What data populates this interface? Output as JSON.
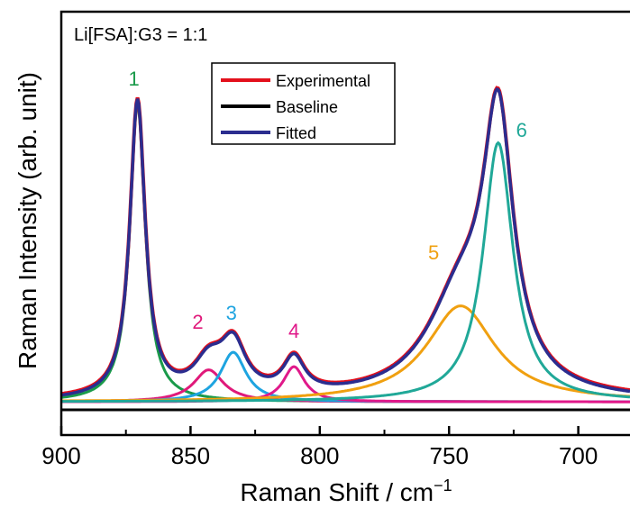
{
  "chart_data": {
    "type": "line",
    "annotation": "Li[FSA]:G3 = 1:1",
    "xlabel": "Raman Shift / cm",
    "xlabel_sup": "−1",
    "ylabel": "Raman Intensity (arb. unit)",
    "xlim": [
      900,
      680
    ],
    "ylim": [
      0,
      1.0
    ],
    "x_reversed": true,
    "x_ticks": [
      900,
      850,
      800,
      750,
      700
    ],
    "y_ticks_shown": false,
    "legend": {
      "placement": "top-center",
      "entries": [
        {
          "label": "Experimental",
          "color": "#e3101c"
        },
        {
          "label": "Baseline",
          "color": "#000000"
        },
        {
          "label": "Fitted",
          "color": "#2b2d8f"
        }
      ]
    },
    "peaks": [
      {
        "label": "1",
        "center": 870.5,
        "height": 0.93,
        "width": 3.6,
        "color": "#1a9a4a"
      },
      {
        "label": "2",
        "center": 843,
        "height": 0.1,
        "width": 7.0,
        "color": "#e0197a"
      },
      {
        "label": "3",
        "center": 833.5,
        "height": 0.155,
        "width": 6.0,
        "color": "#1ea4e0"
      },
      {
        "label": "4",
        "center": 810,
        "height": 0.11,
        "width": 5.0,
        "color": "#e0198a"
      },
      {
        "label": "5",
        "center": 745.5,
        "height": 0.3,
        "width": 16.0,
        "color": "#f0a010"
      },
      {
        "label": "6",
        "center": 731,
        "height": 0.81,
        "width": 7.0,
        "color": "#20a898"
      }
    ],
    "baseline_level": 0.0,
    "offset": 0.025
  }
}
